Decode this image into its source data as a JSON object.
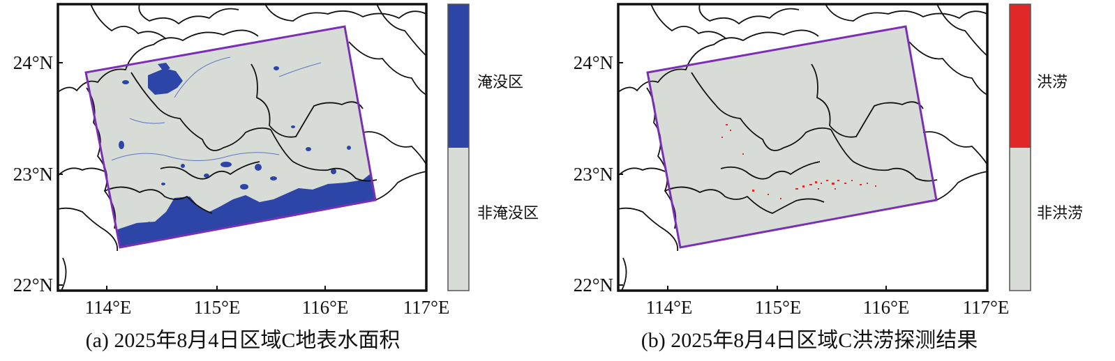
{
  "colors": {
    "frame": "#111111",
    "region_outline": "#7a2fb5",
    "land_gray": "#d8dcd6",
    "water_blue": "#2c45a6",
    "flood_red": "#e02828"
  },
  "panels": [
    {
      "id": "a",
      "caption": "(a) 2025年8月4日区域C地表水面积",
      "y_ticks": [
        "24°N",
        "23°N",
        "22°N"
      ],
      "x_ticks": [
        "114°E",
        "115°E",
        "116°E",
        "117°E"
      ],
      "legend": {
        "top_label": "淹没区",
        "bottom_label": "非淹没区",
        "top_color": "#2c45a6",
        "bottom_color": "#d8dcd6"
      }
    },
    {
      "id": "b",
      "caption": "(b) 2025年8月4日区域C洪涝探测结果",
      "y_ticks": [
        "24°N",
        "23°N",
        "22°N"
      ],
      "x_ticks": [
        "114°E",
        "115°E",
        "116°E",
        "117°E"
      ],
      "legend": {
        "top_label": "洪涝",
        "bottom_label": "非洪涝",
        "top_color": "#e02828",
        "bottom_color": "#d8dcd6"
      }
    }
  ]
}
